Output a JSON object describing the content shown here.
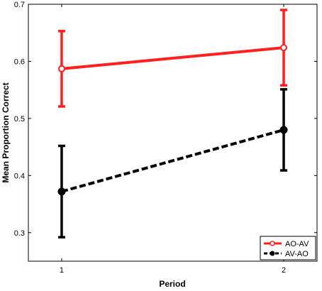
{
  "chart_data": {
    "type": "line",
    "title": "",
    "xlabel": "Period",
    "ylabel": "Mean Proportion Correct",
    "x": [
      1,
      2
    ],
    "xticks": [
      "1",
      "2"
    ],
    "xlim": [
      0.85,
      2.15
    ],
    "ylim": [
      0.25,
      0.7
    ],
    "yticks": [
      "0.3",
      "0.4",
      "0.5",
      "0.6",
      "0.7"
    ],
    "grid": false,
    "legend_position": "bottom-right",
    "series": [
      {
        "name": "AO-AV",
        "values": [
          0.587,
          0.624
        ],
        "error_low": [
          0.521,
          0.558
        ],
        "error_high": [
          0.653,
          0.69
        ],
        "color": "#ff2020",
        "line_style": "solid",
        "marker": "open-circle"
      },
      {
        "name": "AV-AO",
        "values": [
          0.372,
          0.48
        ],
        "error_low": [
          0.292,
          0.409
        ],
        "error_high": [
          0.452,
          0.551
        ],
        "color": "#000000",
        "line_style": "dashed",
        "marker": "filled-circle"
      }
    ]
  }
}
